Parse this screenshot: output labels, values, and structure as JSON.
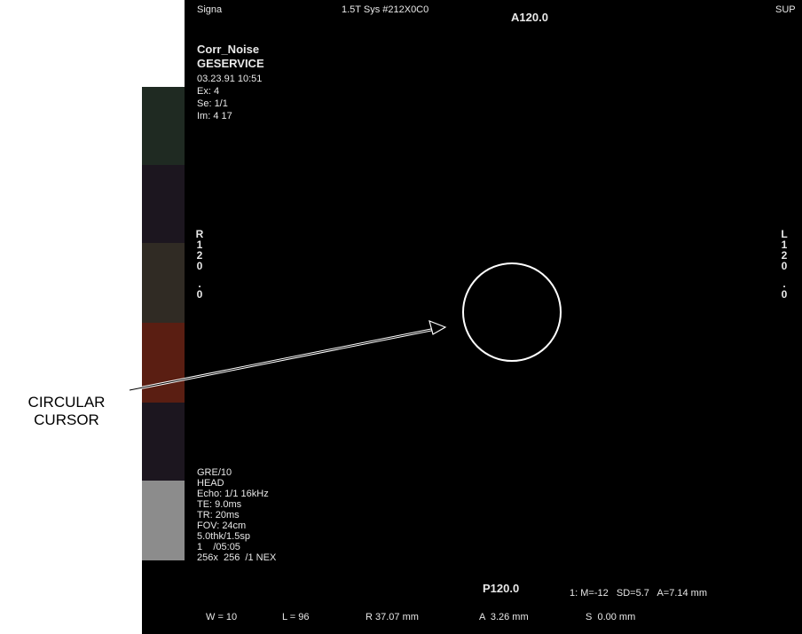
{
  "header": {
    "system": "Signa",
    "sys_id": "1.5T Sys #212X0C0",
    "anterior": "A120.0",
    "sup": "SUP"
  },
  "patient_info": {
    "name": "Corr_Noise",
    "id": "GESERVICE",
    "date_time": "03.23.91 10:51",
    "exam": "Ex: 4",
    "series": "Se: 1/1",
    "image": "Im: 4 17"
  },
  "orientation": {
    "left_side": [
      "R",
      "1",
      "2",
      "0",
      ".",
      "0"
    ],
    "right_side": [
      "L",
      "1",
      "2",
      "0",
      ".",
      "0"
    ]
  },
  "scan_params": {
    "sequence": "GRE/10",
    "coil": "HEAD",
    "echo": "Echo: 1/1 16kHz",
    "te": "TE: 9.0ms",
    "tr": "TR: 20ms",
    "fov": "FOV: 24cm",
    "slice": "5.0thk/1.5sp",
    "scan_time": "1    /05:05",
    "matrix": "256x  256  /1 NEX"
  },
  "posterior": "P120.0",
  "stats": "1: M=-12   SD=5.7   A=7.14 mm",
  "footer": {
    "window": "W = 10",
    "level": "L = 96",
    "r_coord": "R 37.07 mm",
    "a_coord": "A  3.26 mm",
    "s_coord": "S  0.00 mm"
  },
  "callout": {
    "line1": "CIRCULAR",
    "line2": "CURSOR"
  },
  "palette_colors": [
    "#ffffff",
    "#1f2a22",
    "#1c161f",
    "#302b24",
    "#5a1e12",
    "#1c161f",
    "#8c8c8c"
  ],
  "colors": {
    "screen_bg": "#000000",
    "text": "#e8e8e8",
    "cursor": "#ffffff"
  }
}
